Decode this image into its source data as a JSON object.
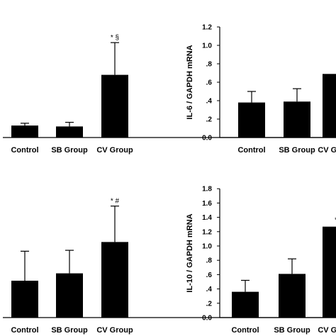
{
  "chart_data": [
    {
      "type": "bar",
      "categories": [
        "Control",
        "SB Group",
        "CV Group"
      ],
      "values": [
        0.13,
        0.12,
        0.68
      ],
      "errors": [
        0.025,
        0.045,
        0.35
      ],
      "annotations": [
        "",
        "",
        "* §"
      ],
      "ylabel": "",
      "ylim": [
        0,
        1.2
      ],
      "yticks": [],
      "bar_color": "#000000"
    },
    {
      "type": "bar",
      "categories": [
        "Control",
        "SB Group",
        "CV Group"
      ],
      "values": [
        0.38,
        0.39,
        0.69
      ],
      "errors": [
        0.12,
        0.14,
        0.0
      ],
      "annotations": [
        "",
        "",
        ""
      ],
      "ylabel": "IL-6 / GAPDH mRNA",
      "ylim": [
        0,
        1.2
      ],
      "yticks": [
        "0.0",
        ".2",
        ".4",
        ".6",
        ".8",
        "1.0",
        "1.2"
      ],
      "bar_color": "#000000"
    },
    {
      "type": "bar",
      "categories": [
        "Control",
        "SB Group",
        "CV Group"
      ],
      "values": [
        0.4,
        0.48,
        0.82
      ],
      "errors": [
        0.32,
        0.25,
        0.39
      ],
      "annotations": [
        "",
        "",
        "* #"
      ],
      "ylabel": "",
      "ylim": [
        0,
        1.4
      ],
      "yticks": [],
      "bar_color": "#000000"
    },
    {
      "type": "bar",
      "categories": [
        "Control",
        "SB Group",
        "CV Group"
      ],
      "values": [
        0.36,
        0.61,
        1.27
      ],
      "errors": [
        0.16,
        0.21,
        0.0
      ],
      "annotations": [
        "",
        "",
        "*"
      ],
      "ylabel": "IL-10 / GAPDH mRNA",
      "ylim": [
        0,
        1.8
      ],
      "yticks": [
        "0.0",
        ".2",
        ".4",
        ".6",
        ".8",
        "1.0",
        "1.2",
        "1.4",
        "1.6",
        "1.8"
      ],
      "bar_color": "#000000"
    }
  ]
}
